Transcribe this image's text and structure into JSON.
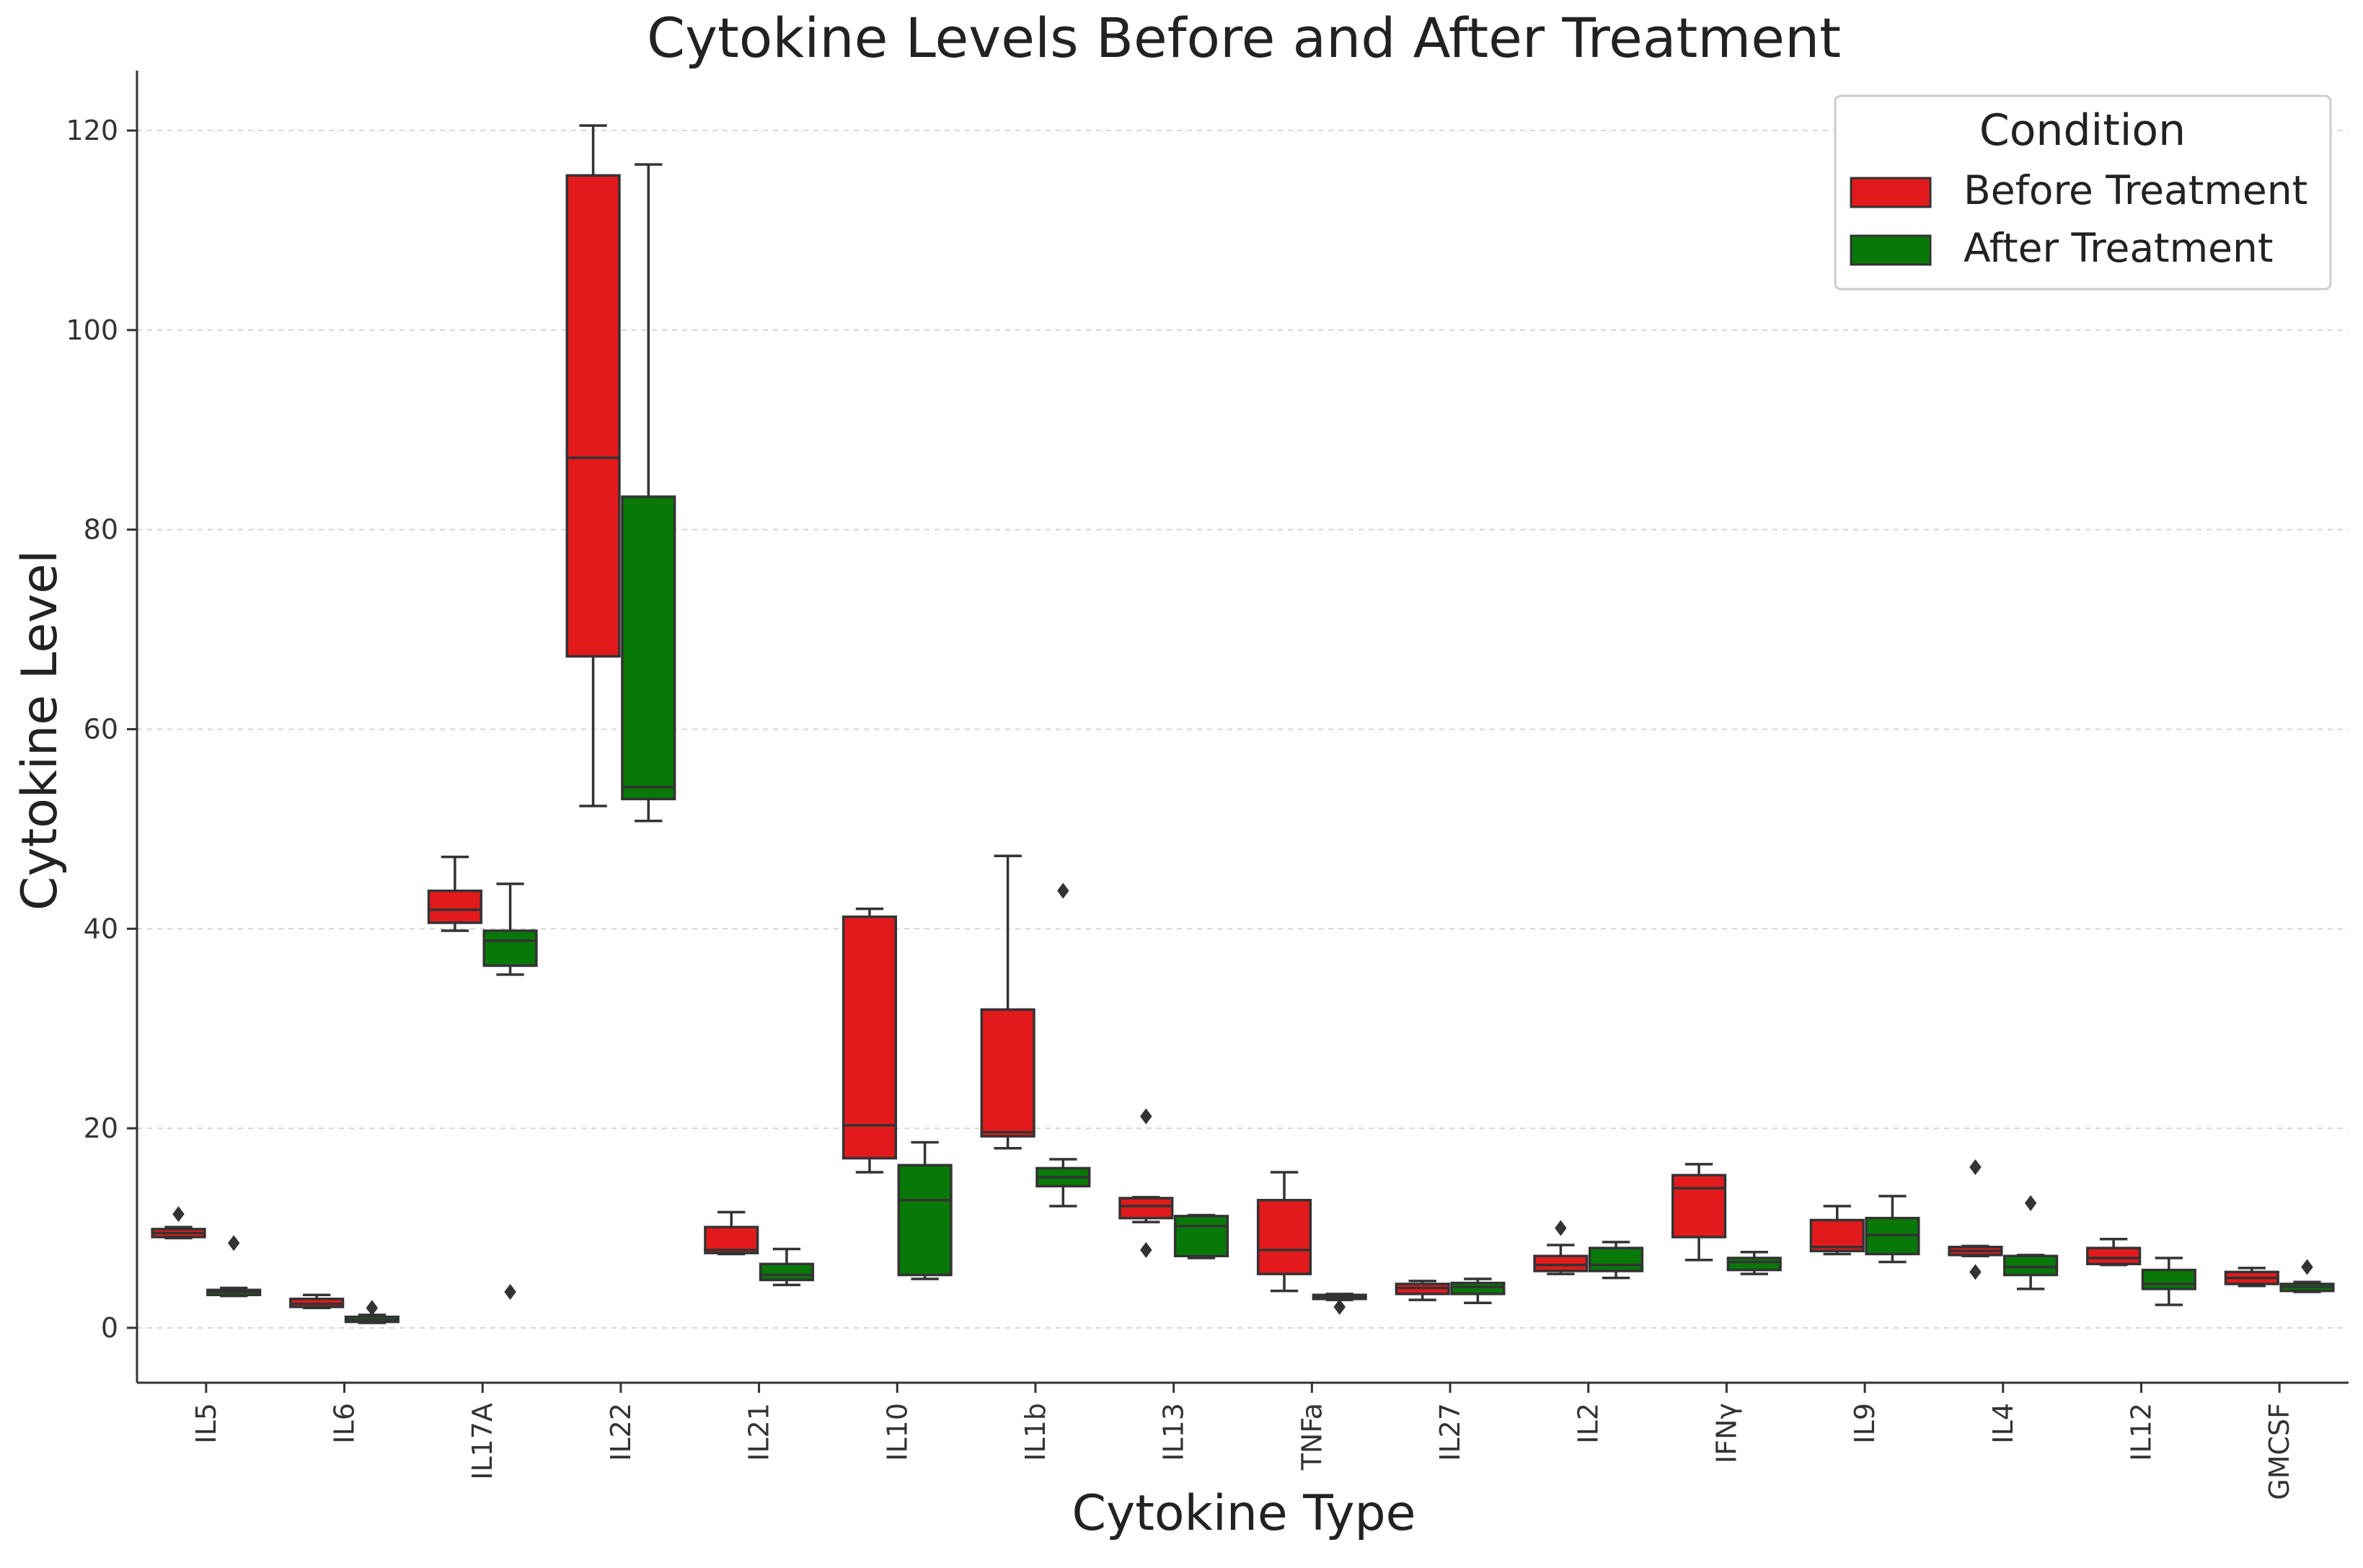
{
  "chart_data": {
    "type": "box",
    "title": "Cytokine Levels Before and After Treatment",
    "xlabel": "Cytokine Type",
    "ylabel": "Cytokine Level",
    "ylim": [
      -5.5,
      126
    ],
    "yticks": [
      0,
      20,
      40,
      60,
      80,
      100,
      120
    ],
    "grid": "horizontal-dashed",
    "legend": {
      "title": "Condition",
      "position": "top-right",
      "entries": [
        "Before Treatment",
        "After Treatment"
      ]
    },
    "colors": {
      "before": "#e31a1c",
      "after": "#087808",
      "line": "#333333"
    },
    "categories": [
      "IL5",
      "IL6",
      "IL17A",
      "IL22",
      "IL21",
      "IL10",
      "IL1b",
      "IL13",
      "TNFa",
      "IL27",
      "IL2",
      "IFNγ",
      "IL9",
      "IL4",
      "IL12",
      "GMCSF"
    ],
    "series": [
      {
        "name": "Before Treatment",
        "boxes": [
          {
            "whislo": 9.0,
            "q1": 9.1,
            "med": 9.5,
            "q3": 9.9,
            "whishi": 10.1,
            "fliers": [
              11.4
            ]
          },
          {
            "whislo": 2.0,
            "q1": 2.1,
            "med": 2.4,
            "q3": 2.9,
            "whishi": 3.3,
            "fliers": []
          },
          {
            "whislo": 39.8,
            "q1": 40.6,
            "med": 41.9,
            "q3": 43.8,
            "whishi": 47.2,
            "fliers": []
          },
          {
            "whislo": 52.3,
            "q1": 67.3,
            "med": 87.2,
            "q3": 115.5,
            "whishi": 120.5,
            "fliers": []
          },
          {
            "whislo": 7.4,
            "q1": 7.5,
            "med": 7.8,
            "q3": 10.1,
            "whishi": 11.6,
            "fliers": []
          },
          {
            "whislo": 15.6,
            "q1": 17.0,
            "med": 20.3,
            "q3": 41.2,
            "whishi": 42.0,
            "fliers": []
          },
          {
            "whislo": 18.0,
            "q1": 19.2,
            "med": 19.6,
            "q3": 31.9,
            "whishi": 47.3,
            "fliers": []
          },
          {
            "whislo": 10.6,
            "q1": 11.0,
            "med": 12.2,
            "q3": 13.0,
            "whishi": 13.1,
            "fliers": [
              7.8,
              21.2
            ]
          },
          {
            "whislo": 3.7,
            "q1": 5.4,
            "med": 7.8,
            "q3": 12.8,
            "whishi": 15.6,
            "fliers": []
          },
          {
            "whislo": 2.8,
            "q1": 3.4,
            "med": 4.0,
            "q3": 4.4,
            "whishi": 4.7,
            "fliers": []
          },
          {
            "whislo": 5.4,
            "q1": 5.7,
            "med": 6.3,
            "q3": 7.2,
            "whishi": 8.3,
            "fliers": [
              10.0
            ]
          },
          {
            "whislo": 6.8,
            "q1": 9.1,
            "med": 14.0,
            "q3": 15.3,
            "whishi": 16.4,
            "fliers": []
          },
          {
            "whislo": 7.4,
            "q1": 7.7,
            "med": 8.1,
            "q3": 10.8,
            "whishi": 12.2,
            "fliers": []
          },
          {
            "whislo": 7.2,
            "q1": 7.3,
            "med": 7.7,
            "q3": 8.1,
            "whishi": 8.2,
            "fliers": [
              5.6,
              16.1
            ]
          },
          {
            "whislo": 6.3,
            "q1": 6.4,
            "med": 7.0,
            "q3": 8.0,
            "whishi": 8.9,
            "fliers": []
          },
          {
            "whislo": 4.2,
            "q1": 4.4,
            "med": 5.0,
            "q3": 5.6,
            "whishi": 6.0,
            "fliers": []
          }
        ]
      },
      {
        "name": "After Treatment",
        "boxes": [
          {
            "whislo": 3.2,
            "q1": 3.3,
            "med": 3.6,
            "q3": 3.8,
            "whishi": 4.0,
            "fliers": [
              8.5
            ]
          },
          {
            "whislo": 0.5,
            "q1": 0.6,
            "med": 0.8,
            "q3": 1.1,
            "whishi": 1.3,
            "fliers": [
              2.0
            ]
          },
          {
            "whislo": 35.4,
            "q1": 36.3,
            "med": 38.8,
            "q3": 39.8,
            "whishi": 44.5,
            "fliers": [
              3.6
            ]
          },
          {
            "whislo": 50.8,
            "q1": 53.0,
            "med": 54.2,
            "q3": 83.3,
            "whishi": 116.6,
            "fliers": []
          },
          {
            "whislo": 4.3,
            "q1": 4.8,
            "med": 5.3,
            "q3": 6.4,
            "whishi": 7.9,
            "fliers": []
          },
          {
            "whislo": 4.9,
            "q1": 5.3,
            "med": 12.8,
            "q3": 16.3,
            "whishi": 18.6,
            "fliers": []
          },
          {
            "whislo": 12.2,
            "q1": 14.2,
            "med": 15.1,
            "q3": 16.0,
            "whishi": 16.9,
            "fliers": [
              43.8
            ]
          },
          {
            "whislo": 7.0,
            "q1": 7.2,
            "med": 10.2,
            "q3": 11.2,
            "whishi": 11.3,
            "fliers": []
          },
          {
            "whislo": 2.8,
            "q1": 2.9,
            "med": 3.1,
            "q3": 3.3,
            "whishi": 3.4,
            "fliers": [
              2.1
            ]
          },
          {
            "whislo": 2.5,
            "q1": 3.4,
            "med": 4.1,
            "q3": 4.5,
            "whishi": 4.9,
            "fliers": []
          },
          {
            "whislo": 5.0,
            "q1": 5.7,
            "med": 6.3,
            "q3": 8.0,
            "whishi": 8.6,
            "fliers": []
          },
          {
            "whislo": 5.4,
            "q1": 5.8,
            "med": 6.6,
            "q3": 7.0,
            "whishi": 7.6,
            "fliers": []
          },
          {
            "whislo": 6.6,
            "q1": 7.4,
            "med": 9.3,
            "q3": 11.0,
            "whishi": 13.2,
            "fliers": []
          },
          {
            "whislo": 3.9,
            "q1": 5.3,
            "med": 6.1,
            "q3": 7.2,
            "whishi": 7.3,
            "fliers": [
              12.5
            ]
          },
          {
            "whislo": 2.3,
            "q1": 3.9,
            "med": 4.4,
            "q3": 5.8,
            "whishi": 7.0,
            "fliers": []
          },
          {
            "whislo": 3.6,
            "q1": 3.7,
            "med": 4.1,
            "q3": 4.4,
            "whishi": 4.6,
            "fliers": [
              6.1
            ]
          }
        ]
      }
    ]
  }
}
